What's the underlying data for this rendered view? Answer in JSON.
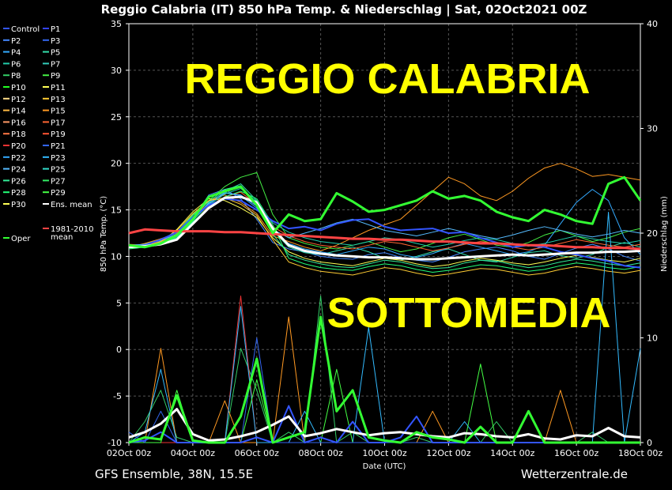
{
  "chart_data": {
    "type": "line",
    "title": "Reggio Calabria  (IT)  850 hPa Temp. & Niederschlag | Sat, 02Oct2021 00Z",
    "xlabel": "Date (UTC)",
    "ylabel": "850 hPa Temp. (°C)",
    "y2label": "Niederschlag (mm)",
    "x_ticks": [
      "02Oct 00z",
      "04Oct 00z",
      "06Oct 00z",
      "08Oct 00z",
      "10Oct 00z",
      "12Oct 00z",
      "14Oct 00z",
      "16Oct 00z",
      "18Oct 00z"
    ],
    "ylim": [
      -10,
      35
    ],
    "y_ticks": [
      -10,
      -5,
      0,
      5,
      10,
      15,
      20,
      25,
      30,
      35
    ],
    "y2lim": [
      0,
      40
    ],
    "y2_ticks": [
      0,
      10,
      20,
      30,
      40
    ],
    "grid": true,
    "legend_position": "left",
    "x_hours": [
      0,
      12,
      24,
      36,
      48,
      60,
      72,
      84,
      96,
      108,
      120,
      132,
      144,
      156,
      168,
      180,
      192,
      204,
      216,
      228,
      240,
      252,
      264,
      276,
      288,
      300,
      312,
      324,
      336,
      348,
      360,
      372,
      384
    ],
    "series": [
      {
        "name": "Ens. mean",
        "color": "#ffffff",
        "width": 3,
        "axis": "temp",
        "values": [
          11.0,
          11.1,
          11.3,
          11.8,
          13.5,
          15.2,
          16.3,
          16.4,
          15.8,
          13.0,
          11.2,
          10.6,
          10.3,
          10.1,
          10.0,
          9.9,
          9.9,
          9.8,
          9.7,
          9.7,
          9.8,
          9.9,
          10.0,
          10.1,
          10.2,
          10.1,
          10.2,
          10.3,
          10.4,
          10.4,
          10.5,
          10.5,
          10.6
        ]
      },
      {
        "name": "1981-2010 mean",
        "color": "#ff4444",
        "width": 3,
        "axis": "temp",
        "values": [
          12.5,
          12.9,
          12.8,
          12.7,
          12.7,
          12.7,
          12.6,
          12.6,
          12.5,
          12.4,
          12.3,
          12.2,
          12.1,
          12.0,
          11.9,
          11.9,
          11.8,
          11.8,
          11.7,
          11.6,
          11.6,
          11.5,
          11.4,
          11.4,
          11.3,
          11.2,
          11.2,
          11.1,
          11.0,
          11.0,
          10.9,
          10.9,
          10.8
        ]
      },
      {
        "name": "Oper",
        "color": "#33ff33",
        "width": 3,
        "axis": "temp",
        "values": [
          11.2,
          11.0,
          11.4,
          12.3,
          14.0,
          16.4,
          17.0,
          17.5,
          15.5,
          12.5,
          14.5,
          13.8,
          14.0,
          16.8,
          15.9,
          14.8,
          15.0,
          15.5,
          16.0,
          17.0,
          16.2,
          16.5,
          16.0,
          14.8,
          14.2,
          13.8,
          15.0,
          14.5,
          13.8,
          13.5,
          17.8,
          18.5,
          16.0
        ]
      },
      {
        "name": "Control",
        "color": "#3355ff",
        "width": 2,
        "axis": "temp",
        "values": [
          11.0,
          11.2,
          11.8,
          12.6,
          14.2,
          15.5,
          16.2,
          16.0,
          15.0,
          13.8,
          13.0,
          13.2,
          12.8,
          13.5,
          13.9,
          14.0,
          13.2,
          12.8,
          12.9,
          13.0,
          12.5,
          12.6,
          12.0,
          11.5,
          11.0,
          11.2,
          11.0,
          10.5,
          10.2,
          9.8,
          9.5,
          9.0,
          8.8
        ]
      },
      {
        "name": "P2",
        "color": "#4488ff",
        "axis": "temp",
        "values": [
          11.3,
          11.0,
          11.9,
          12.2,
          14.0,
          16.6,
          17.2,
          16.2,
          14.0,
          11.5,
          10.8,
          10.5,
          10.0,
          9.8,
          9.7,
          10.2,
          10.4,
          9.9,
          9.6,
          9.4,
          9.9,
          10.5,
          10.8,
          11.0,
          10.6,
          10.0,
          9.7,
          10.3,
          10.9,
          11.3,
          10.8,
          10.0,
          9.5
        ]
      },
      {
        "name": "P5",
        "color": "#33ddaa",
        "axis": "temp",
        "values": [
          11.1,
          11.2,
          11.5,
          12.0,
          13.8,
          15.8,
          17.0,
          17.8,
          16.0,
          12.8,
          11.0,
          10.4,
          10.2,
          10.6,
          11.0,
          10.5,
          9.8,
          9.6,
          10.0,
          10.5,
          10.8,
          10.2,
          9.6,
          9.4,
          9.9,
          10.4,
          10.6,
          10.1,
          9.8,
          10.2,
          11.0,
          11.5,
          11.0
        ]
      },
      {
        "name": "P9",
        "color": "#44ee44",
        "axis": "temp",
        "values": [
          10.9,
          11.3,
          11.7,
          12.6,
          14.5,
          16.0,
          17.5,
          18.5,
          19.0,
          14.5,
          12.0,
          11.4,
          11.0,
          10.8,
          11.2,
          11.6,
          11.0,
          10.5,
          10.8,
          11.4,
          12.0,
          12.4,
          11.8,
          11.2,
          11.0,
          11.5,
          12.3,
          12.8,
          12.2,
          11.6,
          12.0,
          12.6,
          13.0
        ]
      },
      {
        "name": "P11",
        "color": "#ffff55",
        "axis": "temp",
        "values": [
          11.2,
          11.0,
          11.5,
          12.9,
          14.8,
          16.2,
          16.0,
          15.2,
          14.2,
          12.0,
          10.5,
          9.8,
          9.4,
          9.2,
          9.0,
          9.4,
          9.8,
          9.6,
          9.2,
          8.9,
          9.1,
          9.5,
          9.8,
          9.6,
          9.3,
          9.1,
          9.4,
          9.8,
          10.1,
          9.9,
          9.6,
          9.4,
          9.8
        ]
      },
      {
        "name": "P15",
        "color": "#ff9922",
        "axis": "temp",
        "values": [
          11.0,
          11.4,
          11.9,
          12.5,
          14.0,
          16.0,
          16.6,
          15.8,
          14.6,
          12.2,
          11.6,
          11.0,
          10.6,
          11.2,
          12.0,
          12.8,
          13.4,
          14.0,
          15.5,
          17.0,
          18.5,
          17.8,
          16.5,
          16.0,
          17.0,
          18.4,
          19.5,
          20.0,
          19.4,
          18.6,
          18.8,
          18.5,
          18.2
        ]
      },
      {
        "name": "P22",
        "color": "#33aaff",
        "axis": "temp",
        "values": [
          11.1,
          11.1,
          11.6,
          12.3,
          14.2,
          15.6,
          16.9,
          16.5,
          15.2,
          12.6,
          11.4,
          10.8,
          10.5,
          10.2,
          10.6,
          11.0,
          10.8,
          10.2,
          9.9,
          10.3,
          10.9,
          11.4,
          11.0,
          10.6,
          10.2,
          10.5,
          11.2,
          13.5,
          15.8,
          17.2,
          16.0,
          12.0,
          10.2
        ]
      },
      {
        "name": "P26",
        "color": "#33ee99",
        "axis": "temp",
        "values": [
          11.0,
          11.3,
          11.8,
          12.6,
          14.4,
          15.9,
          17.2,
          17.6,
          15.4,
          12.4,
          10.2,
          9.6,
          9.2,
          8.9,
          8.8,
          9.2,
          9.6,
          9.4,
          9.0,
          8.7,
          8.8,
          9.3,
          9.6,
          9.5,
          9.1,
          8.8,
          9.0,
          9.4,
          9.7,
          9.5,
          9.2,
          9.0,
          9.3
        ]
      },
      {
        "name": "P17",
        "color": "#ff6633",
        "axis": "temp",
        "values": [
          11.3,
          11.2,
          11.6,
          12.2,
          13.6,
          15.4,
          16.4,
          16.9,
          15.6,
          13.2,
          12.2,
          11.6,
          11.2,
          11.0,
          10.8,
          11.2,
          11.6,
          11.4,
          11.0,
          10.6,
          10.9,
          11.3,
          11.6,
          11.4,
          11.0,
          10.7,
          11.0,
          11.4,
          11.8,
          11.5,
          11.2,
          11.0,
          11.3
        ]
      },
      {
        "name": "P28",
        "color": "#22ff77",
        "axis": "temp",
        "values": [
          10.8,
          11.0,
          11.4,
          12.0,
          13.7,
          15.3,
          16.4,
          17.0,
          16.2,
          13.4,
          9.8,
          9.2,
          8.8,
          8.6,
          8.5,
          8.9,
          9.2,
          9.0,
          8.6,
          8.3,
          8.5,
          8.8,
          9.1,
          9.0,
          8.7,
          8.4,
          8.6,
          9.0,
          9.3,
          9.1,
          8.8,
          8.6,
          8.9
        ]
      },
      {
        "name": "P24",
        "color": "#55bbff",
        "axis": "temp",
        "values": [
          11.2,
          11.3,
          11.7,
          12.4,
          14.1,
          15.7,
          16.8,
          16.6,
          15.4,
          12.9,
          12.0,
          12.5,
          13.0,
          13.6,
          14.0,
          13.4,
          12.8,
          12.5,
          12.2,
          12.6,
          13.0,
          12.6,
          12.2,
          11.9,
          12.3,
          12.8,
          13.2,
          12.8,
          12.4,
          12.1,
          12.4,
          12.8,
          12.5
        ]
      },
      {
        "name": "P13",
        "color": "#ffcc33",
        "axis": "temp",
        "values": [
          11.0,
          11.1,
          11.6,
          12.8,
          14.6,
          16.0,
          16.3,
          15.6,
          14.4,
          11.8,
          9.4,
          8.8,
          8.4,
          8.2,
          8.0,
          8.4,
          8.8,
          8.6,
          8.2,
          7.9,
          8.1,
          8.4,
          8.7,
          8.6,
          8.3,
          8.0,
          8.2,
          8.6,
          8.9,
          8.7,
          8.4,
          8.2,
          8.5
        ]
      },
      {
        "name": "P6",
        "color": "#22ccaa",
        "axis": "temp",
        "values": [
          11.1,
          11.0,
          11.5,
          12.1,
          13.9,
          15.5,
          16.7,
          17.3,
          15.9,
          13.6,
          12.6,
          12.0,
          11.6,
          11.4,
          11.2,
          11.6,
          12.0,
          11.8,
          11.4,
          11.0,
          11.3,
          11.7,
          12.0,
          11.8,
          11.4,
          11.1,
          11.4,
          11.8,
          12.2,
          11.9,
          11.6,
          11.4,
          11.7
        ]
      },
      {
        "name": "Ens. mean precip",
        "color": "#ffffff",
        "width": 3,
        "axis": "precip",
        "values": [
          0.5,
          1.0,
          1.8,
          3.2,
          0.8,
          0.2,
          0.3,
          0.6,
          1.0,
          1.7,
          2.5,
          0.6,
          0.9,
          1.3,
          1.0,
          0.7,
          0.9,
          1.0,
          0.8,
          0.6,
          0.5,
          0.9,
          0.8,
          0.6,
          0.5,
          0.8,
          0.4,
          0.3,
          0.7,
          0.6,
          1.4,
          0.6,
          0.5
        ]
      },
      {
        "name": "Oper precip",
        "color": "#33ff33",
        "width": 3,
        "axis": "precip",
        "values": [
          0.0,
          0.5,
          0.3,
          4.5,
          0.2,
          0.0,
          0.0,
          2.5,
          8.0,
          0.0,
          0.5,
          1.0,
          12.0,
          3.0,
          5.0,
          0.5,
          0.2,
          0.0,
          1.0,
          0.5,
          0.3,
          0.0,
          1.5,
          0.0,
          0.0,
          3.0,
          0.0,
          0.0,
          0.0,
          0.0,
          0.0,
          0.0,
          0.0
        ]
      },
      {
        "name": "Control precip",
        "color": "#3355ff",
        "width": 2,
        "axis": "precip",
        "values": [
          0.0,
          0.2,
          1.0,
          0.0,
          0.0,
          0.0,
          0.0,
          0.0,
          0.5,
          0.0,
          3.5,
          0.0,
          0.5,
          0.0,
          2.0,
          0.0,
          0.0,
          0.5,
          2.5,
          0.0,
          0.0,
          0.0,
          0.0,
          0.0,
          0.0,
          0.0,
          0.0,
          0.0,
          0.0,
          0.0,
          0.0,
          0.0,
          0.0
        ]
      },
      {
        "name": "P8 precip",
        "color": "#33cc66",
        "axis": "precip",
        "values": [
          0.0,
          2.0,
          5.0,
          0.5,
          0.0,
          0.0,
          0.0,
          9.0,
          5.0,
          0.0,
          1.0,
          0.0,
          14.0,
          0.0,
          1.0,
          0.0,
          0.0,
          0.0,
          0.5,
          0.0,
          0.0,
          0.0,
          0.0,
          2.0,
          0.0,
          0.0,
          0.0,
          0.0,
          0.0,
          1.0,
          0.0,
          0.0,
          0.0
        ]
      },
      {
        "name": "P15 precip",
        "color": "#ff9922",
        "axis": "precip",
        "values": [
          0.0,
          0.0,
          9.0,
          0.0,
          0.0,
          0.0,
          4.0,
          0.0,
          0.0,
          0.0,
          12.0,
          0.0,
          0.0,
          0.0,
          0.0,
          0.0,
          0.0,
          0.0,
          0.0,
          3.0,
          0.0,
          0.0,
          0.0,
          0.0,
          0.0,
          0.0,
          0.0,
          5.0,
          0.0,
          0.0,
          0.0,
          0.0,
          0.0
        ]
      },
      {
        "name": "P20 precip",
        "color": "#ee3333",
        "axis": "precip",
        "values": [
          0.0,
          0.0,
          0.0,
          0.0,
          0.0,
          0.0,
          0.0,
          14.0,
          0.0,
          0.0,
          0.0,
          0.0,
          0.0,
          0.0,
          0.0,
          0.0,
          0.0,
          0.0,
          0.0,
          0.0,
          0.0,
          0.0,
          0.0,
          0.0,
          0.0,
          0.0,
          0.0,
          0.0,
          0.0,
          0.0,
          0.0,
          0.0,
          0.0
        ]
      },
      {
        "name": "P23 precip",
        "color": "#33bbff",
        "axis": "precip",
        "values": [
          0.0,
          1.0,
          7.0,
          0.0,
          0.0,
          0.0,
          0.0,
          13.0,
          0.0,
          0.0,
          0.0,
          3.0,
          0.0,
          0.0,
          0.0,
          11.0,
          0.0,
          0.0,
          0.0,
          0.0,
          0.0,
          2.0,
          0.0,
          0.0,
          0.0,
          0.0,
          0.0,
          0.0,
          0.0,
          0.0,
          22.0,
          0.0,
          9.0
        ]
      },
      {
        "name": "P29 precip",
        "color": "#44ff44",
        "axis": "precip",
        "values": [
          0.0,
          0.0,
          0.0,
          5.0,
          0.0,
          0.0,
          0.0,
          0.0,
          6.0,
          0.0,
          0.0,
          0.0,
          0.0,
          7.0,
          0.0,
          0.0,
          0.0,
          0.0,
          0.0,
          0.0,
          0.0,
          0.0,
          7.5,
          0.0,
          0.0,
          0.0,
          0.0,
          0.0,
          0.0,
          0.0,
          0.0,
          0.0,
          0.0
        ]
      },
      {
        "name": "P3 precip",
        "color": "#3366ee",
        "axis": "precip",
        "values": [
          1.0,
          0.0,
          3.0,
          0.0,
          0.0,
          0.0,
          0.0,
          0.0,
          10.0,
          0.0,
          0.0,
          0.0,
          0.0,
          0.0,
          0.0,
          0.0,
          0.0,
          0.0,
          0.0,
          0.0,
          0.0,
          0.0,
          0.0,
          0.0,
          0.0,
          0.0,
          0.0,
          0.0,
          0.0,
          0.0,
          0.0,
          0.0,
          0.0
        ]
      }
    ],
    "legend": [
      {
        "label": "Control",
        "color": "#3355ff"
      },
      {
        "label": "P1",
        "color": "#3344ff"
      },
      {
        "label": "P2",
        "color": "#4488ff"
      },
      {
        "label": "P3",
        "color": "#3366ee"
      },
      {
        "label": "P4",
        "color": "#33aaff"
      },
      {
        "label": "P5",
        "color": "#33ddaa"
      },
      {
        "label": "P6",
        "color": "#22ccaa"
      },
      {
        "label": "P7",
        "color": "#33ccbb"
      },
      {
        "label": "P8",
        "color": "#33cc66"
      },
      {
        "label": "P9",
        "color": "#44ee44"
      },
      {
        "label": "P10",
        "color": "#22ff22"
      },
      {
        "label": "P11",
        "color": "#ffff55"
      },
      {
        "label": "P12",
        "color": "#ffdd88"
      },
      {
        "label": "P13",
        "color": "#ffcc33"
      },
      {
        "label": "P14",
        "color": "#ffbb44"
      },
      {
        "label": "P15",
        "color": "#ff9922"
      },
      {
        "label": "P16",
        "color": "#ff9966"
      },
      {
        "label": "P17",
        "color": "#ff6633"
      },
      {
        "label": "P18",
        "color": "#ff7744"
      },
      {
        "label": "P19",
        "color": "#ff5533"
      },
      {
        "label": "P20",
        "color": "#ee3333"
      },
      {
        "label": "P21",
        "color": "#3366ff"
      },
      {
        "label": "P22",
        "color": "#33aaff"
      },
      {
        "label": "P23",
        "color": "#33bbff"
      },
      {
        "label": "P24",
        "color": "#55bbff"
      },
      {
        "label": "P25",
        "color": "#33ddcc"
      },
      {
        "label": "P26",
        "color": "#33ee99"
      },
      {
        "label": "P27",
        "color": "#33ee66"
      },
      {
        "label": "P28",
        "color": "#22ff77"
      },
      {
        "label": "P29",
        "color": "#44ff44"
      },
      {
        "label": "P30",
        "color": "#ffff55"
      },
      {
        "label": "Ens. mean",
        "color": "#ffffff"
      },
      {
        "label": "Oper",
        "color": "#33ff33"
      },
      {
        "label": "1981-2010 mean",
        "color": "#ff4444"
      }
    ],
    "annotations": [
      "REGGIO CALABRIA",
      "SOTTOMEDIA"
    ]
  },
  "footer": {
    "left": "GFS Ensemble, 38N, 15.5E",
    "right": "Wetterzentrale.de"
  }
}
